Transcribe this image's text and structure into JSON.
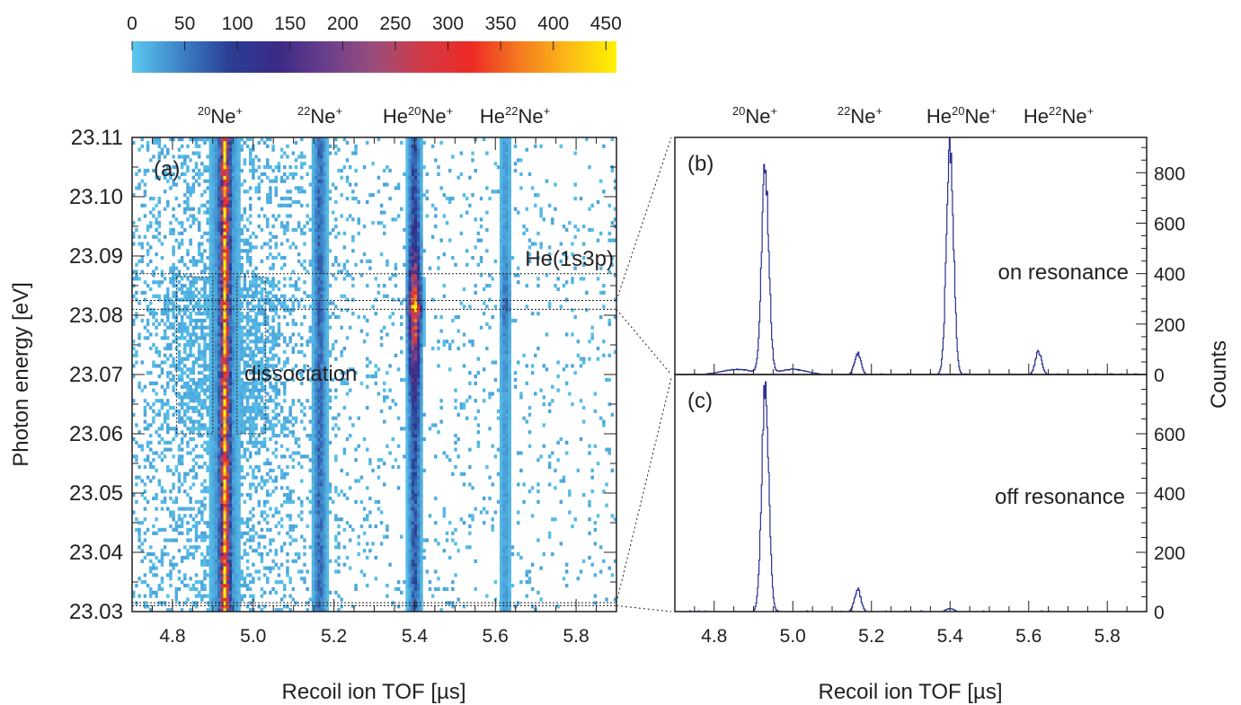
{
  "chart_data": [
    {
      "panel": "(a)",
      "type": "heatmap",
      "xlabel": "Recoil ion TOF [µs]",
      "ylabel": "Photon energy [eV]",
      "xlim": [
        4.7,
        5.9
      ],
      "ylim": [
        23.03,
        23.11
      ],
      "x_ticks": [
        "4.8",
        "5.0",
        "5.2",
        "5.4",
        "5.6",
        "5.8"
      ],
      "y_ticks": [
        "23.03",
        "23.04",
        "23.05",
        "23.06",
        "23.07",
        "23.08",
        "23.09",
        "23.10",
        "23.11"
      ],
      "colorbar": {
        "ticks": [
          "0",
          "50",
          "100",
          "150",
          "200",
          "250",
          "300",
          "350",
          "400",
          "450"
        ],
        "range": [
          0,
          460
        ],
        "colors": [
          "#5bc8ef",
          "#3d83c6",
          "#2a3f95",
          "#3a2a86",
          "#6a3f8c",
          "#9b4d7c",
          "#d23a46",
          "#ee2a24",
          "#f47b20",
          "#fbb917",
          "#fff200"
        ]
      },
      "peaks": [
        {
          "tof": 4.93,
          "intensity": 360
        },
        {
          "tof": 5.165,
          "intensity": 60
        },
        {
          "tof": 5.4,
          "intensity": 110,
          "resonance_max": 420
        },
        {
          "tof": 5.625,
          "intensity": 30,
          "resonance_max": 60
        }
      ],
      "resonance_energy": 23.0815,
      "annotations": [
        {
          "text": "He(1s3p)",
          "x": 5.82,
          "y": 23.089
        },
        {
          "text": "dissociation",
          "x": 5.07,
          "y": 23.0705
        }
      ],
      "horizontal_lines": [
        23.087,
        23.0825,
        23.081,
        23.0315,
        23.031
      ],
      "dissociation_boxes": [
        {
          "x": [
            4.81,
            4.9
          ],
          "y": [
            23.06,
            23.0865
          ]
        },
        {
          "x": [
            4.96,
            5.03
          ],
          "y": [
            23.06,
            23.0865
          ]
        }
      ]
    },
    {
      "panel": "(b)",
      "type": "line",
      "label": "on resonance",
      "xlim": [
        4.7,
        5.9
      ],
      "ylim": [
        0,
        940
      ],
      "y_ticks": [
        "0",
        "200",
        "400",
        "600",
        "800"
      ],
      "peaks": [
        {
          "center": 4.93,
          "height": 810,
          "width": 0.009
        },
        {
          "center": 5.165,
          "height": 85,
          "width": 0.008
        },
        {
          "center": 5.4,
          "height": 900,
          "width": 0.009
        },
        {
          "center": 5.625,
          "height": 90,
          "width": 0.008
        }
      ],
      "dissociation_background": 20
    },
    {
      "panel": "(c)",
      "type": "line",
      "label": "off resonance",
      "xlabel": "Recoil ion TOF [µs]",
      "ylabel": "Counts",
      "xlim": [
        4.7,
        5.9
      ],
      "ylim": [
        0,
        800
      ],
      "x_ticks": [
        "4.8",
        "5.0",
        "5.2",
        "5.4",
        "5.6",
        "5.8"
      ],
      "y_ticks": [
        "0",
        "200",
        "400",
        "600"
      ],
      "peaks": [
        {
          "center": 4.93,
          "height": 760,
          "width": 0.009
        },
        {
          "center": 5.165,
          "height": 75,
          "width": 0.008
        },
        {
          "center": 5.4,
          "height": 10,
          "width": 0.01
        }
      ]
    }
  ],
  "species": {
    "ne20": {
      "mass": "20",
      "elem": "Ne",
      "charge": "+"
    },
    "ne22": {
      "mass": "22",
      "elem": "Ne",
      "charge": "+"
    },
    "hene20": {
      "pre": "He",
      "mass": "20",
      "elem": "Ne",
      "charge": "+"
    },
    "hene22": {
      "pre": "He",
      "mass": "22",
      "elem": "Ne",
      "charge": "+"
    }
  }
}
